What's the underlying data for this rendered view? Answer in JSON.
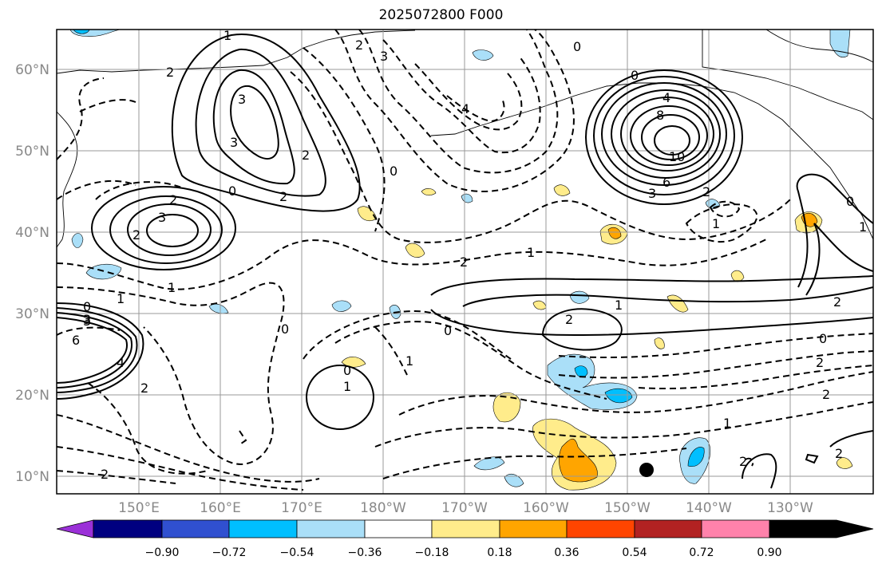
{
  "title": "2025072800 F000",
  "lat_labels": [
    "60°N",
    "50°N",
    "40°N",
    "30°N",
    "20°N",
    "10°N"
  ],
  "lon_labels": [
    "150°E",
    "160°E",
    "170°E",
    "180°W",
    "170°W",
    "160°W",
    "150°W",
    "140°W",
    "130°W"
  ],
  "colorbar": {
    "tick_labels": [
      "−0.90",
      "−0.72",
      "−0.54",
      "−0.36",
      "−0.18",
      "0.18",
      "0.36",
      "0.54",
      "0.72",
      "0.90"
    ],
    "colors": [
      "#9b30d8",
      "#000080",
      "#3050d0",
      "#00bfff",
      "#aadff8",
      "#ffffff",
      "#ffec8b",
      "#ffa500",
      "#ff4500",
      "#b22222",
      "#ff82ab"
    ]
  },
  "contour_labels": [
    "1",
    "2",
    "3",
    "0",
    "2",
    "3",
    "2",
    "3",
    "2",
    "3",
    "0",
    "2",
    "2",
    "3",
    "1",
    "0",
    "1",
    "4",
    "0",
    "4",
    "8",
    "10",
    "6",
    "3",
    "2",
    "0",
    "1",
    "1",
    "2",
    "2",
    "1",
    "0",
    "0",
    "2",
    "1",
    "0",
    "0",
    "1",
    "3",
    "6",
    "4",
    "2",
    "2",
    "1",
    "2",
    "0",
    "2",
    "2",
    "1",
    "2"
  ],
  "marker": "filled circle"
}
